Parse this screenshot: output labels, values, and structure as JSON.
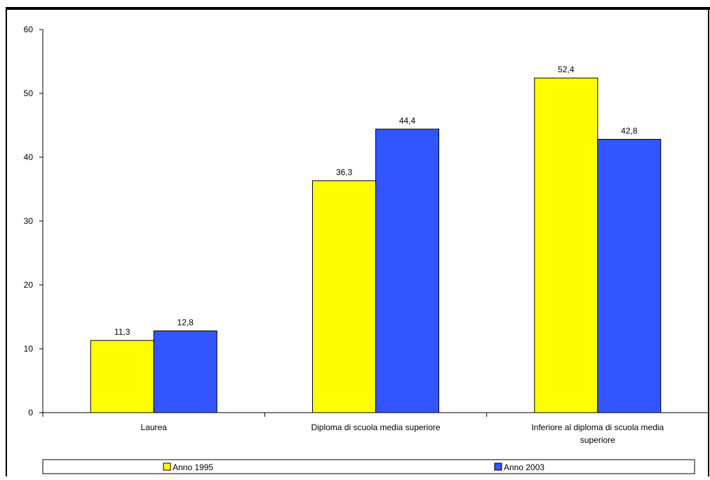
{
  "chart_data": {
    "type": "bar",
    "categories": [
      [
        "Laurea"
      ],
      [
        "Diploma di scuola media superiore"
      ],
      [
        "Inferiore al diploma di scuola media",
        "superiore"
      ]
    ],
    "series": [
      {
        "name": "Anno 1995",
        "color": "#ffff00",
        "values": [
          11.3,
          36.3,
          52.4
        ],
        "labels": [
          "11,3",
          "36,3",
          "52,4"
        ]
      },
      {
        "name": "Anno 2003",
        "color": "#3355ff",
        "values": [
          12.8,
          44.4,
          42.8
        ],
        "labels": [
          "12,8",
          "44,4",
          "42,8"
        ]
      }
    ],
    "ylim": [
      0,
      60
    ],
    "yticks": [
      0,
      10,
      20,
      30,
      40,
      50,
      60
    ],
    "grid": false,
    "legend_position": "bottom"
  }
}
